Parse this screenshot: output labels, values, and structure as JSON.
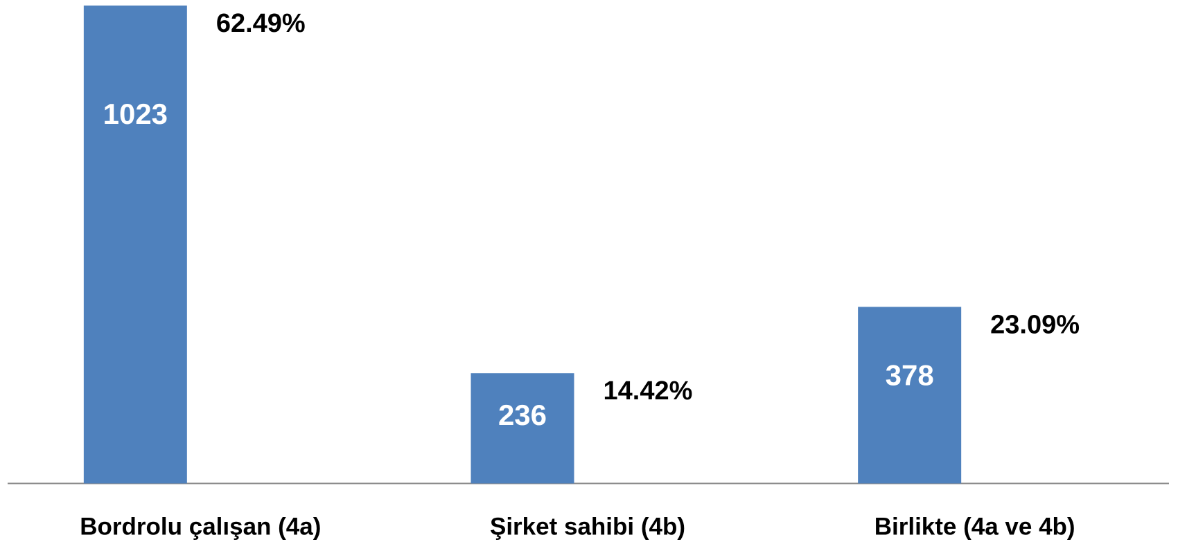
{
  "chart_data": {
    "type": "bar",
    "categories": [
      "Bordrolu çalışan (4a)",
      "Şirket sahibi (4b)",
      "Birlikte (4a ve 4b)"
    ],
    "values": [
      1023,
      236,
      378
    ],
    "percentages": [
      62.49,
      14.42,
      23.09
    ],
    "percentage_labels": [
      "62.49%",
      "14.42%",
      "23.09%"
    ],
    "color": "#4f81bd",
    "ylim": [
      0,
      1030
    ]
  }
}
